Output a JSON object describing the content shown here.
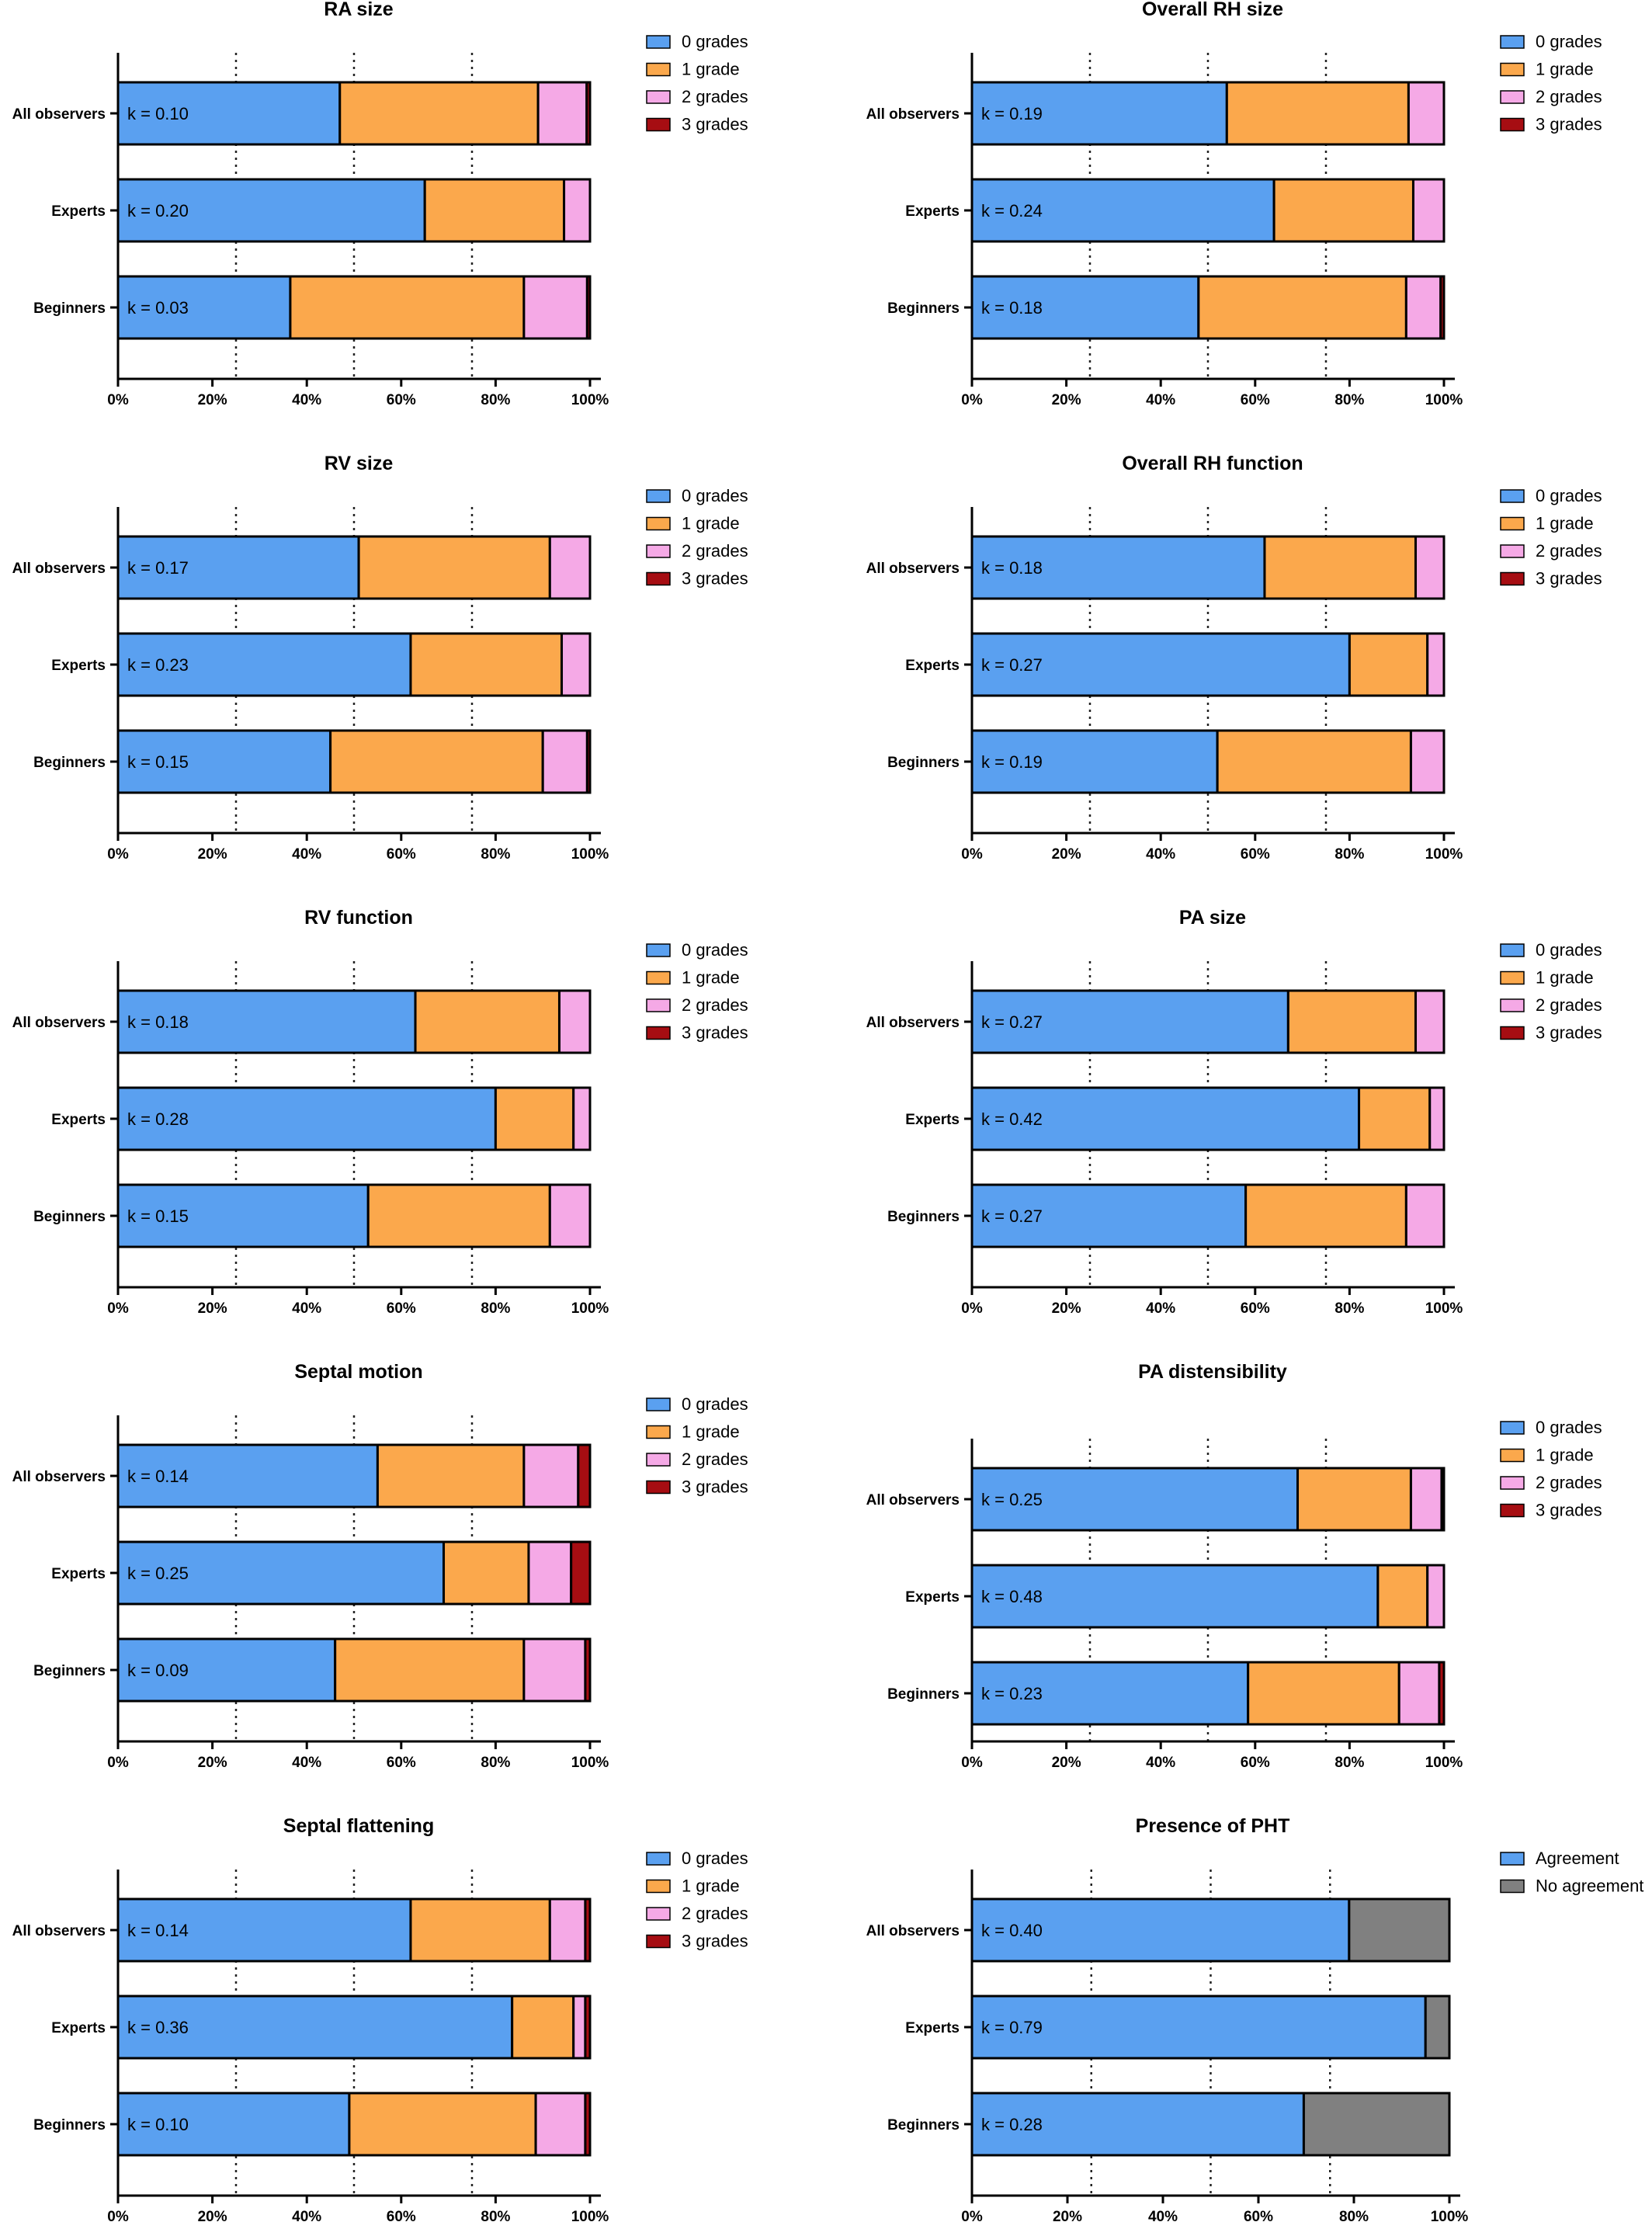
{
  "colors": {
    "grade0": "#5aa0f0",
    "grade1": "#fba84c",
    "grade2": "#f5a9e6",
    "grade3": "#a60d12",
    "agreement": "#5aa0f0",
    "no_agreement": "#808080"
  },
  "chart_data": [
    {
      "type": "bar",
      "orientation": "horizontal",
      "stacked": true,
      "percent": true,
      "title": "RA size",
      "categories": [
        "All observers",
        "Experts",
        "Beginners"
      ],
      "kappa_labels": [
        "k = 0.10",
        "k = 0.20",
        "k = 0.03"
      ],
      "series": [
        {
          "name": "0 grades",
          "values": [
            47,
            65,
            36.5
          ]
        },
        {
          "name": "1 grade",
          "values": [
            42,
            29.5,
            49.5
          ]
        },
        {
          "name": "2 grades",
          "values": [
            10.3,
            5.5,
            13.4
          ]
        },
        {
          "name": "3 grades",
          "values": [
            0.7,
            0,
            0.6
          ]
        }
      ],
      "xlim": [
        0,
        100
      ],
      "xticks": [
        "0%",
        "20%",
        "40%",
        "60%",
        "80%",
        "100%"
      ],
      "grid": "dotted at 25%, 50%, 75%",
      "legend": "right"
    },
    {
      "type": "bar",
      "orientation": "horizontal",
      "stacked": true,
      "percent": true,
      "title": "Overall RH size",
      "categories": [
        "All observers",
        "Experts",
        "Beginners"
      ],
      "kappa_labels": [
        "k = 0.19",
        "k = 0.24",
        "k = 0.18"
      ],
      "series": [
        {
          "name": "0 grades",
          "values": [
            54,
            64,
            48
          ]
        },
        {
          "name": "1 grade",
          "values": [
            38.5,
            29.5,
            44
          ]
        },
        {
          "name": "2 grades",
          "values": [
            7.5,
            6.5,
            7.3
          ]
        },
        {
          "name": "3 grades",
          "values": [
            0,
            0,
            0.7
          ]
        }
      ],
      "xlim": [
        0,
        100
      ],
      "xticks": [
        "0%",
        "20%",
        "40%",
        "60%",
        "80%",
        "100%"
      ],
      "grid": "dotted at 25%, 50%, 75%",
      "legend": "right"
    },
    {
      "type": "bar",
      "orientation": "horizontal",
      "stacked": true,
      "percent": true,
      "title": "RV size",
      "categories": [
        "All observers",
        "Experts",
        "Beginners"
      ],
      "kappa_labels": [
        "k =  0.17",
        "k = 0.23",
        "k = 0.15"
      ],
      "series": [
        {
          "name": "0 grades",
          "values": [
            51,
            62,
            45
          ]
        },
        {
          "name": "1 grade",
          "values": [
            40.5,
            32,
            45
          ]
        },
        {
          "name": "2 grades",
          "values": [
            8.5,
            6,
            9.4
          ]
        },
        {
          "name": "3 grades",
          "values": [
            0,
            0,
            0.6
          ]
        }
      ],
      "xlim": [
        0,
        100
      ],
      "xticks": [
        "0%",
        "20%",
        "40%",
        "60%",
        "80%",
        "100%"
      ],
      "grid": "dotted at 25%, 50%, 75%",
      "legend": "right"
    },
    {
      "type": "bar",
      "orientation": "horizontal",
      "stacked": true,
      "percent": true,
      "title": "Overall RH function",
      "categories": [
        "All observers",
        "Experts",
        "Beginners"
      ],
      "kappa_labels": [
        "k = 0.18",
        "k = 0.27",
        "k = 0.19"
      ],
      "series": [
        {
          "name": "0 grades",
          "values": [
            62,
            80,
            52
          ]
        },
        {
          "name": "1 grade",
          "values": [
            32,
            16.5,
            41
          ]
        },
        {
          "name": "2 grades",
          "values": [
            6,
            3.5,
            7
          ]
        },
        {
          "name": "3 grades",
          "values": [
            0,
            0,
            0
          ]
        }
      ],
      "xlim": [
        0,
        100
      ],
      "xticks": [
        "0%",
        "20%",
        "40%",
        "60%",
        "80%",
        "100%"
      ],
      "grid": "dotted at 25%, 50%, 75%",
      "legend": "right"
    },
    {
      "type": "bar",
      "orientation": "horizontal",
      "stacked": true,
      "percent": true,
      "title": "RV function",
      "categories": [
        "All observers",
        "Experts",
        "Beginners"
      ],
      "kappa_labels": [
        "k = 0.18",
        "k = 0.28",
        "k = 0.15"
      ],
      "series": [
        {
          "name": "0 grades",
          "values": [
            63,
            80,
            53
          ]
        },
        {
          "name": "1 grade",
          "values": [
            30.5,
            16.5,
            38.5
          ]
        },
        {
          "name": "2 grades",
          "values": [
            6.5,
            3.5,
            8.5
          ]
        },
        {
          "name": "3 grades",
          "values": [
            0,
            0,
            0
          ]
        }
      ],
      "xlim": [
        0,
        100
      ],
      "xticks": [
        "0%",
        "20%",
        "40%",
        "60%",
        "80%",
        "100%"
      ],
      "grid": "dotted at 25%, 50%, 75%",
      "legend": "right"
    },
    {
      "type": "bar",
      "orientation": "horizontal",
      "stacked": true,
      "percent": true,
      "title": "PA size",
      "categories": [
        "All observers",
        "Experts",
        "Beginners"
      ],
      "kappa_labels": [
        "k = 0.27",
        "k = 0.42",
        "k = 0.27"
      ],
      "series": [
        {
          "name": "0 grades",
          "values": [
            67,
            82,
            58
          ]
        },
        {
          "name": "1 grade",
          "values": [
            27,
            15,
            34
          ]
        },
        {
          "name": "2 grades",
          "values": [
            6,
            3,
            8
          ]
        },
        {
          "name": "3 grades",
          "values": [
            0,
            0,
            0
          ]
        }
      ],
      "xlim": [
        0,
        100
      ],
      "xticks": [
        "0%",
        "20%",
        "40%",
        "60%",
        "80%",
        "100%"
      ],
      "grid": "dotted at 25%, 50%, 75%",
      "legend": "right"
    },
    {
      "type": "bar",
      "orientation": "horizontal",
      "stacked": true,
      "percent": true,
      "title": "Septal motion",
      "categories": [
        "All observers",
        "Experts",
        "Beginners"
      ],
      "kappa_labels": [
        "k = 0.14",
        "k = 0.25",
        "k = 0.09"
      ],
      "series": [
        {
          "name": "0 grades",
          "values": [
            55,
            69,
            46
          ]
        },
        {
          "name": "1 grade",
          "values": [
            31,
            18,
            40
          ]
        },
        {
          "name": "2 grades",
          "values": [
            11.5,
            9,
            13
          ]
        },
        {
          "name": "3 grades",
          "values": [
            2.5,
            4,
            1
          ]
        }
      ],
      "xlim": [
        0,
        100
      ],
      "xticks": [
        "0%",
        "20%",
        "40%",
        "60%",
        "80%",
        "100%"
      ],
      "grid": "dotted at 25%, 50%, 75%",
      "legend": "right"
    },
    {
      "type": "bar",
      "orientation": "horizontal",
      "stacked": true,
      "percent": true,
      "title": "PA distensibility",
      "categories": [
        "All observers",
        "Experts",
        "Beginners"
      ],
      "kappa_labels": [
        "k = 0.25",
        "k = 0.48",
        "k = 0.23"
      ],
      "series": [
        {
          "name": "0 grades",
          "values": [
            69,
            86,
            58.5
          ]
        },
        {
          "name": "1 grade",
          "values": [
            24,
            10.5,
            32
          ]
        },
        {
          "name": "2 grades",
          "values": [
            6.5,
            3.5,
            8.5
          ]
        },
        {
          "name": "3 grades",
          "values": [
            0.5,
            0,
            1
          ]
        }
      ],
      "xlim": [
        0,
        100
      ],
      "xticks": [
        "0%",
        "20%",
        "40%",
        "60%",
        "80%",
        "100%"
      ],
      "grid": "dotted at 25%, 50%, 75%",
      "legend": "right"
    },
    {
      "type": "bar",
      "orientation": "horizontal",
      "stacked": true,
      "percent": true,
      "title": "Septal flattening",
      "categories": [
        "All observers",
        "Experts",
        "Beginners"
      ],
      "kappa_labels": [
        "k = 0.14",
        "k = 0.36",
        "k = 0.10"
      ],
      "series": [
        {
          "name": "0 grades",
          "values": [
            62,
            83.5,
            49
          ]
        },
        {
          "name": "1 grade",
          "values": [
            29.5,
            13,
            39.5
          ]
        },
        {
          "name": "2 grades",
          "values": [
            7.5,
            2.5,
            10.5
          ]
        },
        {
          "name": "3 grades",
          "values": [
            1,
            1,
            1
          ]
        }
      ],
      "xlim": [
        0,
        100
      ],
      "xticks": [
        "0%",
        "20%",
        "40%",
        "60%",
        "80%",
        "100%"
      ],
      "grid": "dotted at 25%, 50%, 75%",
      "legend": "right"
    },
    {
      "type": "bar",
      "orientation": "horizontal",
      "stacked": true,
      "percent": true,
      "title": "Presence of PHT",
      "categories": [
        "All observers",
        "Experts",
        "Beginners"
      ],
      "kappa_labels": [
        "k = 0.40",
        "k = 0.79",
        "k = 0.28"
      ],
      "series": [
        {
          "name": "Agreement",
          "values": [
            79,
            95,
            69.5
          ]
        },
        {
          "name": "No agreement",
          "values": [
            21,
            5,
            30.5
          ]
        }
      ],
      "xlim": [
        0,
        100
      ],
      "xticks": [
        "0%",
        "20%",
        "40%",
        "60%",
        "80%",
        "100%"
      ],
      "grid": "dotted at 25%, 50%, 75%",
      "legend": "right"
    }
  ]
}
